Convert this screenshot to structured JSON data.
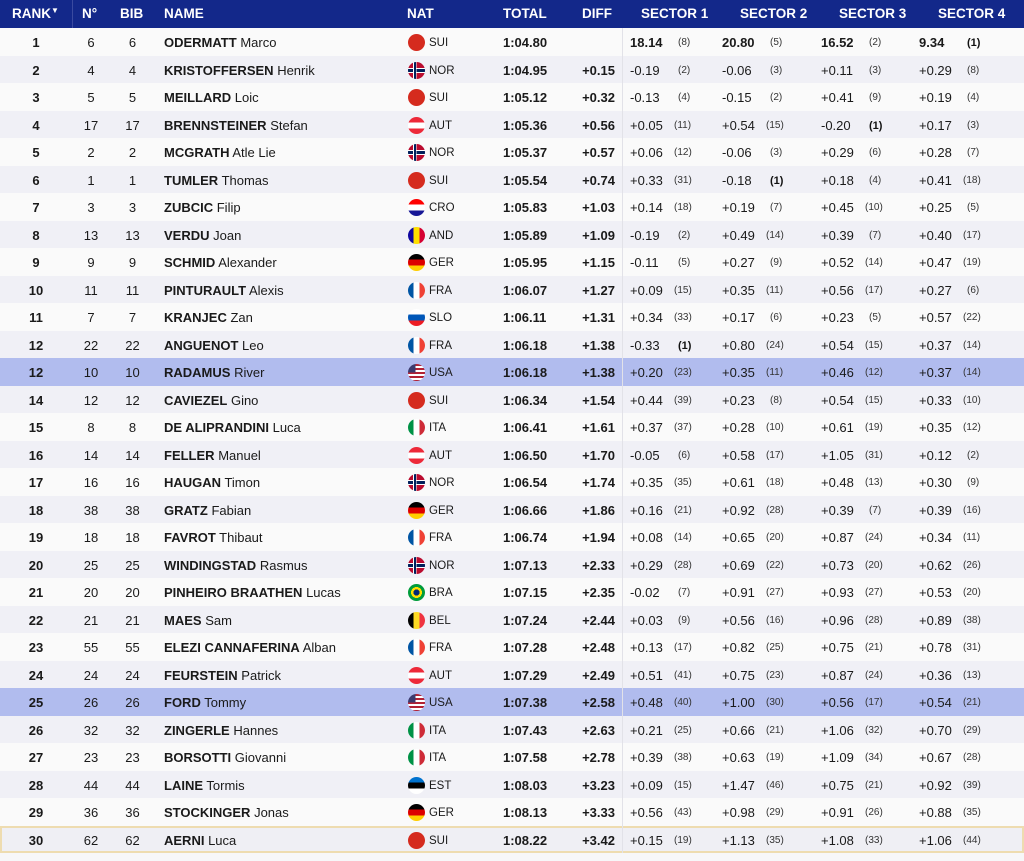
{
  "header": {
    "rank": "RANK",
    "rank_sort_icon": "sort-down-icon",
    "no": "N°",
    "bib": "BIB",
    "name": "NAME",
    "nat": "NAT",
    "total": "TOTAL",
    "diff": "DIFF",
    "s1": "SECTOR 1",
    "s2": "SECTOR 2",
    "s3": "SECTOR 3",
    "s4": "SECTOR 4"
  },
  "colors": {
    "header_bg": "#13288a",
    "highlight": "#b1bcee",
    "current_outline": "#eedcb0"
  },
  "rows": [
    {
      "rank": "1",
      "no": "6",
      "bib": "6",
      "last": "ODERMATT",
      "first": "Marco",
      "nat": "SUI",
      "total": "1:04.80",
      "diff": "",
      "s": [
        [
          "18.14",
          "(8)"
        ],
        [
          "20.80",
          "(5)"
        ],
        [
          "16.52",
          "(2)"
        ],
        [
          "9.34",
          "(1)"
        ]
      ]
    },
    {
      "rank": "2",
      "no": "4",
      "bib": "4",
      "last": "KRISTOFFERSEN",
      "first": "Henrik",
      "nat": "NOR",
      "total": "1:04.95",
      "diff": "+0.15",
      "s": [
        [
          "-0.19",
          "(2)"
        ],
        [
          "-0.06",
          "(3)"
        ],
        [
          "+0.11",
          "(3)"
        ],
        [
          "+0.29",
          "(8)"
        ]
      ]
    },
    {
      "rank": "3",
      "no": "5",
      "bib": "5",
      "last": "MEILLARD",
      "first": "Loic",
      "nat": "SUI",
      "total": "1:05.12",
      "diff": "+0.32",
      "s": [
        [
          "-0.13",
          "(4)"
        ],
        [
          "-0.15",
          "(2)"
        ],
        [
          "+0.41",
          "(9)"
        ],
        [
          "+0.19",
          "(4)"
        ]
      ]
    },
    {
      "rank": "4",
      "no": "17",
      "bib": "17",
      "last": "BRENNSTEINER",
      "first": "Stefan",
      "nat": "AUT",
      "total": "1:05.36",
      "diff": "+0.56",
      "s": [
        [
          "+0.05",
          "(11)"
        ],
        [
          "+0.54",
          "(15)"
        ],
        [
          "-0.20",
          "(1)"
        ],
        [
          "+0.17",
          "(3)"
        ]
      ]
    },
    {
      "rank": "5",
      "no": "2",
      "bib": "2",
      "last": "MCGRATH",
      "first": "Atle Lie",
      "nat": "NOR",
      "total": "1:05.37",
      "diff": "+0.57",
      "s": [
        [
          "+0.06",
          "(12)"
        ],
        [
          "-0.06",
          "(3)"
        ],
        [
          "+0.29",
          "(6)"
        ],
        [
          "+0.28",
          "(7)"
        ]
      ]
    },
    {
      "rank": "6",
      "no": "1",
      "bib": "1",
      "last": "TUMLER",
      "first": "Thomas",
      "nat": "SUI",
      "total": "1:05.54",
      "diff": "+0.74",
      "s": [
        [
          "+0.33",
          "(31)"
        ],
        [
          "-0.18",
          "(1)"
        ],
        [
          "+0.18",
          "(4)"
        ],
        [
          "+0.41",
          "(18)"
        ]
      ]
    },
    {
      "rank": "7",
      "no": "3",
      "bib": "3",
      "last": "ZUBCIC",
      "first": "Filip",
      "nat": "CRO",
      "total": "1:05.83",
      "diff": "+1.03",
      "s": [
        [
          "+0.14",
          "(18)"
        ],
        [
          "+0.19",
          "(7)"
        ],
        [
          "+0.45",
          "(10)"
        ],
        [
          "+0.25",
          "(5)"
        ]
      ]
    },
    {
      "rank": "8",
      "no": "13",
      "bib": "13",
      "last": "VERDU",
      "first": "Joan",
      "nat": "AND",
      "total": "1:05.89",
      "diff": "+1.09",
      "s": [
        [
          "-0.19",
          "(2)"
        ],
        [
          "+0.49",
          "(14)"
        ],
        [
          "+0.39",
          "(7)"
        ],
        [
          "+0.40",
          "(17)"
        ]
      ]
    },
    {
      "rank": "9",
      "no": "9",
      "bib": "9",
      "last": "SCHMID",
      "first": "Alexander",
      "nat": "GER",
      "total": "1:05.95",
      "diff": "+1.15",
      "s": [
        [
          "-0.11",
          "(5)"
        ],
        [
          "+0.27",
          "(9)"
        ],
        [
          "+0.52",
          "(14)"
        ],
        [
          "+0.47",
          "(19)"
        ]
      ]
    },
    {
      "rank": "10",
      "no": "11",
      "bib": "11",
      "last": "PINTURAULT",
      "first": "Alexis",
      "nat": "FRA",
      "total": "1:06.07",
      "diff": "+1.27",
      "s": [
        [
          "+0.09",
          "(15)"
        ],
        [
          "+0.35",
          "(11)"
        ],
        [
          "+0.56",
          "(17)"
        ],
        [
          "+0.27",
          "(6)"
        ]
      ]
    },
    {
      "rank": "11",
      "no": "7",
      "bib": "7",
      "last": "KRANJEC",
      "first": "Zan",
      "nat": "SLO",
      "total": "1:06.11",
      "diff": "+1.31",
      "s": [
        [
          "+0.34",
          "(33)"
        ],
        [
          "+0.17",
          "(6)"
        ],
        [
          "+0.23",
          "(5)"
        ],
        [
          "+0.57",
          "(22)"
        ]
      ]
    },
    {
      "rank": "12",
      "no": "22",
      "bib": "22",
      "last": "ANGUENOT",
      "first": "Leo",
      "nat": "FRA",
      "total": "1:06.18",
      "diff": "+1.38",
      "s": [
        [
          "-0.33",
          "(1)"
        ],
        [
          "+0.80",
          "(24)"
        ],
        [
          "+0.54",
          "(15)"
        ],
        [
          "+0.37",
          "(14)"
        ]
      ]
    },
    {
      "rank": "12",
      "no": "10",
      "bib": "10",
      "last": "RADAMUS",
      "first": "River",
      "nat": "USA",
      "total": "1:06.18",
      "diff": "+1.38",
      "highlight": true,
      "s": [
        [
          "+0.20",
          "(23)"
        ],
        [
          "+0.35",
          "(11)"
        ],
        [
          "+0.46",
          "(12)"
        ],
        [
          "+0.37",
          "(14)"
        ]
      ]
    },
    {
      "rank": "14",
      "no": "12",
      "bib": "12",
      "last": "CAVIEZEL",
      "first": "Gino",
      "nat": "SUI",
      "total": "1:06.34",
      "diff": "+1.54",
      "s": [
        [
          "+0.44",
          "(39)"
        ],
        [
          "+0.23",
          "(8)"
        ],
        [
          "+0.54",
          "(15)"
        ],
        [
          "+0.33",
          "(10)"
        ]
      ]
    },
    {
      "rank": "15",
      "no": "8",
      "bib": "8",
      "last": "DE ALIPRANDINI",
      "first": "Luca",
      "nat": "ITA",
      "total": "1:06.41",
      "diff": "+1.61",
      "s": [
        [
          "+0.37",
          "(37)"
        ],
        [
          "+0.28",
          "(10)"
        ],
        [
          "+0.61",
          "(19)"
        ],
        [
          "+0.35",
          "(12)"
        ]
      ]
    },
    {
      "rank": "16",
      "no": "14",
      "bib": "14",
      "last": "FELLER",
      "first": "Manuel",
      "nat": "AUT",
      "total": "1:06.50",
      "diff": "+1.70",
      "s": [
        [
          "-0.05",
          "(6)"
        ],
        [
          "+0.58",
          "(17)"
        ],
        [
          "+1.05",
          "(31)"
        ],
        [
          "+0.12",
          "(2)"
        ]
      ]
    },
    {
      "rank": "17",
      "no": "16",
      "bib": "16",
      "last": "HAUGAN",
      "first": "Timon",
      "nat": "NOR",
      "total": "1:06.54",
      "diff": "+1.74",
      "s": [
        [
          "+0.35",
          "(35)"
        ],
        [
          "+0.61",
          "(18)"
        ],
        [
          "+0.48",
          "(13)"
        ],
        [
          "+0.30",
          "(9)"
        ]
      ]
    },
    {
      "rank": "18",
      "no": "38",
      "bib": "38",
      "last": "GRATZ",
      "first": "Fabian",
      "nat": "GER",
      "total": "1:06.66",
      "diff": "+1.86",
      "s": [
        [
          "+0.16",
          "(21)"
        ],
        [
          "+0.92",
          "(28)"
        ],
        [
          "+0.39",
          "(7)"
        ],
        [
          "+0.39",
          "(16)"
        ]
      ]
    },
    {
      "rank": "19",
      "no": "18",
      "bib": "18",
      "last": "FAVROT",
      "first": "Thibaut",
      "nat": "FRA",
      "total": "1:06.74",
      "diff": "+1.94",
      "s": [
        [
          "+0.08",
          "(14)"
        ],
        [
          "+0.65",
          "(20)"
        ],
        [
          "+0.87",
          "(24)"
        ],
        [
          "+0.34",
          "(11)"
        ]
      ]
    },
    {
      "rank": "20",
      "no": "25",
      "bib": "25",
      "last": "WINDINGSTAD",
      "first": "Rasmus",
      "nat": "NOR",
      "total": "1:07.13",
      "diff": "+2.33",
      "s": [
        [
          "+0.29",
          "(28)"
        ],
        [
          "+0.69",
          "(22)"
        ],
        [
          "+0.73",
          "(20)"
        ],
        [
          "+0.62",
          "(26)"
        ]
      ]
    },
    {
      "rank": "21",
      "no": "20",
      "bib": "20",
      "last": "PINHEIRO BRAATHEN",
      "first": "Lucas",
      "nat": "BRA",
      "total": "1:07.15",
      "diff": "+2.35",
      "s": [
        [
          "-0.02",
          "(7)"
        ],
        [
          "+0.91",
          "(27)"
        ],
        [
          "+0.93",
          "(27)"
        ],
        [
          "+0.53",
          "(20)"
        ]
      ]
    },
    {
      "rank": "22",
      "no": "21",
      "bib": "21",
      "last": "MAES",
      "first": "Sam",
      "nat": "BEL",
      "total": "1:07.24",
      "diff": "+2.44",
      "s": [
        [
          "+0.03",
          "(9)"
        ],
        [
          "+0.56",
          "(16)"
        ],
        [
          "+0.96",
          "(28)"
        ],
        [
          "+0.89",
          "(38)"
        ]
      ]
    },
    {
      "rank": "23",
      "no": "55",
      "bib": "55",
      "last": "ELEZI CANNAFERINA",
      "first": "Alban",
      "nat": "FRA",
      "total": "1:07.28",
      "diff": "+2.48",
      "s": [
        [
          "+0.13",
          "(17)"
        ],
        [
          "+0.82",
          "(25)"
        ],
        [
          "+0.75",
          "(21)"
        ],
        [
          "+0.78",
          "(31)"
        ]
      ]
    },
    {
      "rank": "24",
      "no": "24",
      "bib": "24",
      "last": "FEURSTEIN",
      "first": "Patrick",
      "nat": "AUT",
      "total": "1:07.29",
      "diff": "+2.49",
      "s": [
        [
          "+0.51",
          "(41)"
        ],
        [
          "+0.75",
          "(23)"
        ],
        [
          "+0.87",
          "(24)"
        ],
        [
          "+0.36",
          "(13)"
        ]
      ]
    },
    {
      "rank": "25",
      "no": "26",
      "bib": "26",
      "last": "FORD",
      "first": "Tommy",
      "nat": "USA",
      "total": "1:07.38",
      "diff": "+2.58",
      "highlight": true,
      "s": [
        [
          "+0.48",
          "(40)"
        ],
        [
          "+1.00",
          "(30)"
        ],
        [
          "+0.56",
          "(17)"
        ],
        [
          "+0.54",
          "(21)"
        ]
      ]
    },
    {
      "rank": "26",
      "no": "32",
      "bib": "32",
      "last": "ZINGERLE",
      "first": "Hannes",
      "nat": "ITA",
      "total": "1:07.43",
      "diff": "+2.63",
      "s": [
        [
          "+0.21",
          "(25)"
        ],
        [
          "+0.66",
          "(21)"
        ],
        [
          "+1.06",
          "(32)"
        ],
        [
          "+0.70",
          "(29)"
        ]
      ]
    },
    {
      "rank": "27",
      "no": "23",
      "bib": "23",
      "last": "BORSOTTI",
      "first": "Giovanni",
      "nat": "ITA",
      "total": "1:07.58",
      "diff": "+2.78",
      "s": [
        [
          "+0.39",
          "(38)"
        ],
        [
          "+0.63",
          "(19)"
        ],
        [
          "+1.09",
          "(34)"
        ],
        [
          "+0.67",
          "(28)"
        ]
      ]
    },
    {
      "rank": "28",
      "no": "44",
      "bib": "44",
      "last": "LAINE",
      "first": "Tormis",
      "nat": "EST",
      "total": "1:08.03",
      "diff": "+3.23",
      "s": [
        [
          "+0.09",
          "(15)"
        ],
        [
          "+1.47",
          "(46)"
        ],
        [
          "+0.75",
          "(21)"
        ],
        [
          "+0.92",
          "(39)"
        ]
      ]
    },
    {
      "rank": "29",
      "no": "36",
      "bib": "36",
      "last": "STOCKINGER",
      "first": "Jonas",
      "nat": "GER",
      "total": "1:08.13",
      "diff": "+3.33",
      "s": [
        [
          "+0.56",
          "(43)"
        ],
        [
          "+0.98",
          "(29)"
        ],
        [
          "+0.91",
          "(26)"
        ],
        [
          "+0.88",
          "(35)"
        ]
      ]
    },
    {
      "rank": "30",
      "no": "62",
      "bib": "62",
      "last": "AERNI",
      "first": "Luca",
      "nat": "SUI",
      "total": "1:08.22",
      "diff": "+3.42",
      "current": true,
      "s": [
        [
          "+0.15",
          "(19)"
        ],
        [
          "+1.13",
          "(35)"
        ],
        [
          "+1.08",
          "(33)"
        ],
        [
          "+1.06",
          "(44)"
        ]
      ]
    }
  ]
}
